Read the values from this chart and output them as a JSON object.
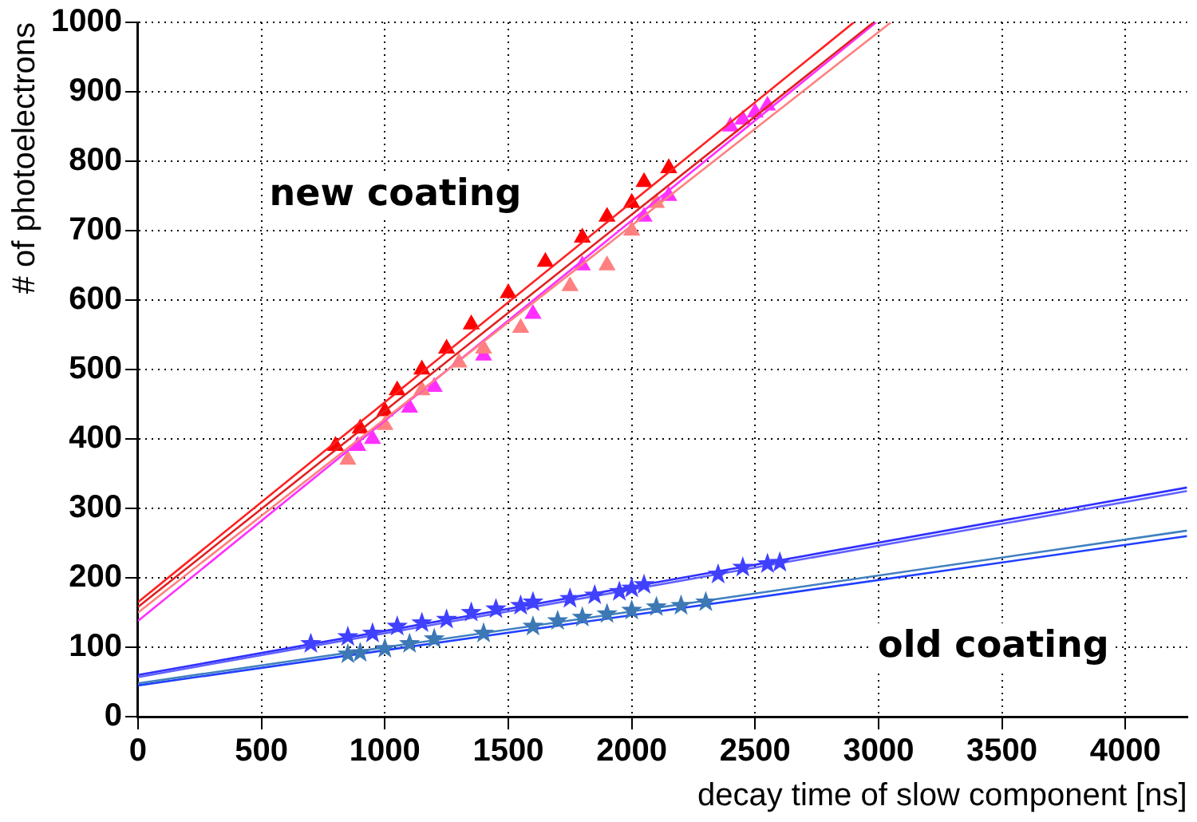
{
  "chart_data": {
    "type": "scatter",
    "xlabel": "decay time of slow component [ns]",
    "ylabel": "# of photoelectrons",
    "xlim": [
      0,
      4250
    ],
    "xticks": [
      0,
      500,
      1000,
      1500,
      2000,
      2500,
      3000,
      3500,
      4000
    ],
    "ylim": [
      0,
      1000
    ],
    "yticks": [
      0,
      100,
      200,
      300,
      400,
      500,
      600,
      700,
      800,
      900,
      1000
    ],
    "grid": true,
    "legend": false,
    "annotations": [
      "new coating",
      "old coating"
    ],
    "series": [
      {
        "type": "line",
        "color": "#ff2020",
        "marker": "none",
        "x": [
          0,
          2900
        ],
        "values": [
          165,
          1000
        ]
      },
      {
        "type": "line",
        "color": "#e02020",
        "marker": "none",
        "x": [
          0,
          2980
        ],
        "values": [
          158,
          1000
        ]
      },
      {
        "type": "line",
        "color": "#ff8080",
        "marker": "none",
        "x": [
          0,
          3050
        ],
        "values": [
          150,
          1000
        ]
      },
      {
        "type": "line",
        "color": "#ff30ff",
        "marker": "none",
        "x": [
          0,
          2990
        ],
        "values": [
          138,
          1000
        ]
      },
      {
        "type": "line",
        "color": "#3030ff",
        "marker": "none",
        "x": [
          0,
          4250
        ],
        "values": [
          60,
          330
        ]
      },
      {
        "type": "line",
        "color": "#6060ff",
        "marker": "none",
        "x": [
          0,
          4250
        ],
        "values": [
          57,
          325
        ]
      },
      {
        "type": "line",
        "color": "#4080c0",
        "marker": "none",
        "x": [
          0,
          4250
        ],
        "values": [
          48,
          268
        ]
      },
      {
        "type": "line",
        "color": "#2040ff",
        "marker": "none",
        "x": [
          0,
          4250
        ],
        "values": [
          45,
          260
        ]
      },
      {
        "color": "#ff8080",
        "marker": "triangle",
        "x": [
          850,
          1000,
          1150,
          1300,
          1400,
          1550,
          1750,
          1900,
          2000,
          2100
        ],
        "values": [
          370,
          420,
          470,
          510,
          530,
          560,
          620,
          650,
          700,
          740
        ]
      },
      {
        "color": "#ff0000",
        "marker": "triangle",
        "x": [
          800,
          900,
          1000,
          1050,
          1150,
          1250,
          1350,
          1500,
          1650,
          1800,
          1900,
          2000,
          2050,
          2150
        ],
        "values": [
          390,
          415,
          440,
          470,
          500,
          530,
          565,
          610,
          655,
          690,
          720,
          740,
          770,
          790
        ]
      },
      {
        "color": "#ff30ff",
        "marker": "triangle",
        "x": [
          890,
          950,
          1100,
          1200,
          1400,
          1600,
          1800,
          2050,
          2150,
          2400,
          2450,
          2500,
          2550
        ],
        "values": [
          390,
          400,
          445,
          475,
          520,
          580,
          650,
          720,
          750,
          850,
          860,
          870,
          880
        ]
      },
      {
        "color": "#3c78b4",
        "marker": "star",
        "x": [
          850,
          900,
          1000,
          1100,
          1200,
          1400,
          1600,
          1700,
          1800,
          1900,
          2000,
          2100,
          2200,
          2300
        ],
        "values": [
          90,
          92,
          98,
          105,
          112,
          120,
          130,
          138,
          143,
          148,
          153,
          158,
          160,
          165
        ]
      },
      {
        "color": "#4040ff",
        "marker": "star",
        "x": [
          700,
          850,
          950,
          1050,
          1150,
          1250,
          1350,
          1450,
          1550,
          1600,
          1750,
          1850,
          1950,
          2000,
          2050,
          2350,
          2450,
          2550,
          2600
        ],
        "values": [
          105,
          115,
          120,
          130,
          135,
          140,
          150,
          155,
          160,
          165,
          170,
          175,
          180,
          185,
          190,
          205,
          215,
          220,
          222
        ]
      }
    ]
  }
}
